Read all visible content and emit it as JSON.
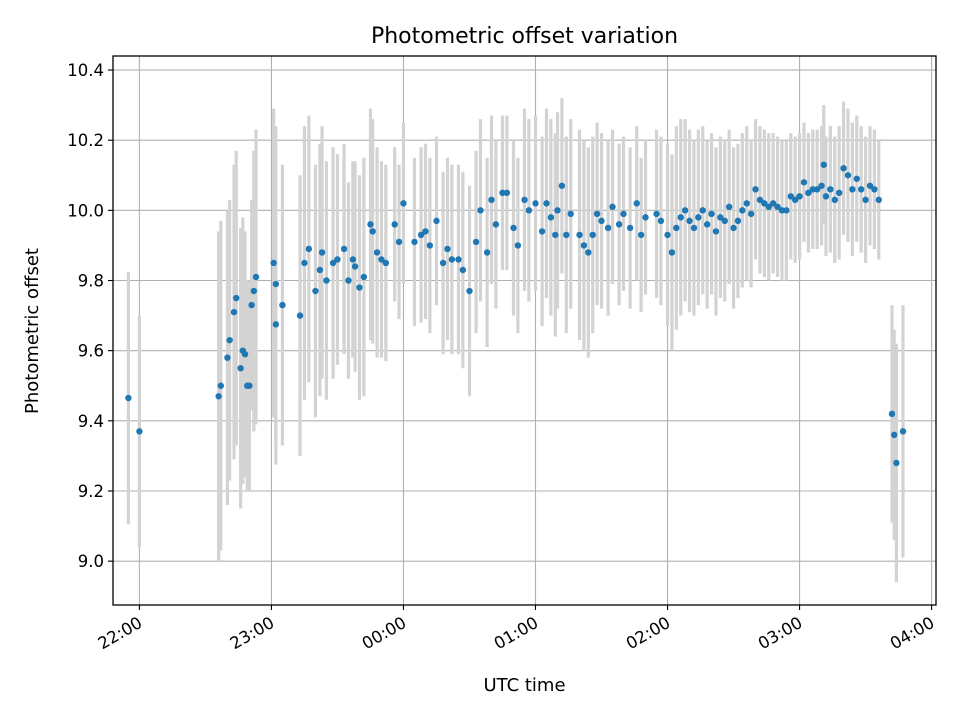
{
  "chart_data": {
    "type": "scatter",
    "title": "Photometric offset variation",
    "xlabel": "UTC time",
    "ylabel": "Photometric offset",
    "x_ticks": [
      "22:00",
      "23:00",
      "00:00",
      "01:00",
      "02:00",
      "03:00",
      "04:00"
    ],
    "y_ticks": [
      "9.0",
      "9.2",
      "9.4",
      "9.6",
      "9.8",
      "10.0",
      "10.2",
      "10.4"
    ],
    "xlim": [
      "21:48",
      "04:02"
    ],
    "ylim": [
      8.875,
      10.44
    ],
    "grid": true,
    "colors": {
      "point": "#1f77b4",
      "errorbar": "#d3d3d3"
    },
    "series": [
      {
        "name": "",
        "x": [
          "21:55",
          "22:00",
          "22:36",
          "22:37",
          "22:40",
          "22:41",
          "22:43",
          "22:44",
          "22:46",
          "22:47",
          "22:48",
          "22:49",
          "22:50",
          "22:51",
          "22:52",
          "22:53",
          "23:01",
          "23:02",
          "23:02",
          "23:05",
          "23:13",
          "23:15",
          "23:17",
          "23:20",
          "23:22",
          "23:23",
          "23:25",
          "23:28",
          "23:30",
          "23:33",
          "23:35",
          "23:37",
          "23:38",
          "23:40",
          "23:42",
          "23:45",
          "23:46",
          "23:48",
          "23:50",
          "23:52",
          "23:56",
          "23:58",
          "00:00",
          "00:05",
          "00:08",
          "00:10",
          "00:12",
          "00:15",
          "00:18",
          "00:20",
          "00:22",
          "00:25",
          "00:27",
          "00:30",
          "00:33",
          "00:35",
          "00:38",
          "00:40",
          "00:42",
          "00:45",
          "00:47",
          "00:50",
          "00:52",
          "00:55",
          "00:57",
          "01:00",
          "01:03",
          "01:05",
          "01:07",
          "01:09",
          "01:10",
          "01:12",
          "01:14",
          "01:16",
          "01:20",
          "01:22",
          "01:24",
          "01:26",
          "01:28",
          "01:30",
          "01:33",
          "01:35",
          "01:38",
          "01:40",
          "01:43",
          "01:46",
          "01:48",
          "01:50",
          "01:55",
          "01:57",
          "02:00",
          "02:02",
          "02:04",
          "02:06",
          "02:08",
          "02:10",
          "02:12",
          "02:14",
          "02:16",
          "02:18",
          "02:20",
          "02:22",
          "02:24",
          "02:26",
          "02:28",
          "02:30",
          "02:32",
          "02:34",
          "02:36",
          "02:38",
          "02:40",
          "02:42",
          "02:44",
          "02:46",
          "02:48",
          "02:50",
          "02:52",
          "02:54",
          "02:56",
          "02:58",
          "03:00",
          "03:02",
          "03:04",
          "03:06",
          "03:08",
          "03:10",
          "03:11",
          "03:12",
          "03:14",
          "03:16",
          "03:18",
          "03:20",
          "03:22",
          "03:24",
          "03:26",
          "03:28",
          "03:30",
          "03:32",
          "03:34",
          "03:36",
          "03:42",
          "03:43",
          "03:44",
          "03:47"
        ],
        "y": [
          9.465,
          9.37,
          9.47,
          9.5,
          9.58,
          9.63,
          9.71,
          9.75,
          9.55,
          9.6,
          9.59,
          9.5,
          9.5,
          9.73,
          9.77,
          9.81,
          9.85,
          9.79,
          9.675,
          9.73,
          9.7,
          9.85,
          9.89,
          9.77,
          9.83,
          9.88,
          9.8,
          9.85,
          9.86,
          9.89,
          9.8,
          9.86,
          9.84,
          9.78,
          9.81,
          9.96,
          9.94,
          9.88,
          9.86,
          9.85,
          9.96,
          9.91,
          10.02,
          9.91,
          9.93,
          9.94,
          9.9,
          9.97,
          9.85,
          9.89,
          9.86,
          9.86,
          9.83,
          9.77,
          9.91,
          10.0,
          9.88,
          10.03,
          9.96,
          10.05,
          10.05,
          9.95,
          9.9,
          10.03,
          10.0,
          10.02,
          9.94,
          10.02,
          9.98,
          9.93,
          10.0,
          10.07,
          9.93,
          9.99,
          9.93,
          9.9,
          9.88,
          9.93,
          9.99,
          9.97,
          9.95,
          10.01,
          9.96,
          9.99,
          9.95,
          10.02,
          9.93,
          9.98,
          9.99,
          9.97,
          9.93,
          9.88,
          9.95,
          9.98,
          10.0,
          9.97,
          9.95,
          9.98,
          10.0,
          9.96,
          9.99,
          9.94,
          9.98,
          9.97,
          10.01,
          9.95,
          9.97,
          10.0,
          10.02,
          9.99,
          10.06,
          10.03,
          10.02,
          10.01,
          10.02,
          10.01,
          10.0,
          10.0,
          10.04,
          10.03,
          10.04,
          10.08,
          10.05,
          10.06,
          10.06,
          10.07,
          10.13,
          10.04,
          10.06,
          10.03,
          10.05,
          10.12,
          10.1,
          10.06,
          10.09,
          10.06,
          10.03,
          10.07,
          10.06,
          10.03,
          9.42,
          9.36,
          9.28,
          9.37
        ],
        "err": [
          0.36,
          0.33,
          0.47,
          0.47,
          0.42,
          0.4,
          0.42,
          0.42,
          0.4,
          0.38,
          0.35,
          0.3,
          0.3,
          0.3,
          0.4,
          0.42,
          0.44,
          0.45,
          0.4,
          0.4,
          0.4,
          0.39,
          0.38,
          0.36,
          0.36,
          0.36,
          0.34,
          0.33,
          0.3,
          0.3,
          0.28,
          0.28,
          0.3,
          0.32,
          0.34,
          0.33,
          0.32,
          0.3,
          0.28,
          0.28,
          0.22,
          0.22,
          0.23,
          0.24,
          0.25,
          0.25,
          0.25,
          0.24,
          0.26,
          0.26,
          0.27,
          0.27,
          0.28,
          0.3,
          0.26,
          0.26,
          0.27,
          0.24,
          0.24,
          0.22,
          0.22,
          0.25,
          0.25,
          0.26,
          0.26,
          0.25,
          0.27,
          0.27,
          0.28,
          0.29,
          0.28,
          0.25,
          0.28,
          0.27,
          0.3,
          0.3,
          0.3,
          0.28,
          0.26,
          0.25,
          0.25,
          0.22,
          0.23,
          0.22,
          0.23,
          0.22,
          0.22,
          0.22,
          0.24,
          0.24,
          0.26,
          0.28,
          0.29,
          0.28,
          0.26,
          0.26,
          0.25,
          0.25,
          0.24,
          0.24,
          0.23,
          0.24,
          0.23,
          0.23,
          0.22,
          0.23,
          0.22,
          0.22,
          0.22,
          0.21,
          0.2,
          0.21,
          0.21,
          0.21,
          0.2,
          0.2,
          0.2,
          0.2,
          0.18,
          0.18,
          0.18,
          0.17,
          0.17,
          0.17,
          0.17,
          0.17,
          0.17,
          0.17,
          0.18,
          0.18,
          0.19,
          0.19,
          0.19,
          0.19,
          0.18,
          0.18,
          0.18,
          0.17,
          0.17,
          0.17,
          0.31,
          0.3,
          0.34,
          0.36
        ]
      }
    ]
  }
}
